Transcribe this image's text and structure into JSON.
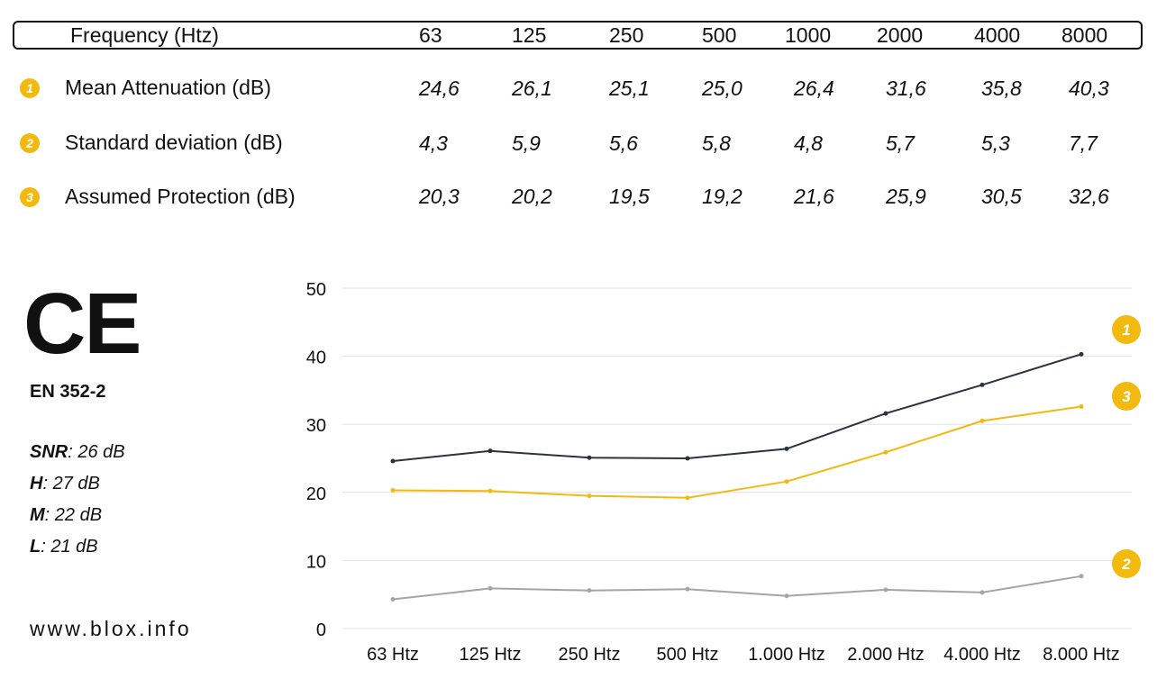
{
  "table": {
    "header": {
      "label": "Frequency (Htz)",
      "freqs": [
        "63",
        "125",
        "250",
        "500",
        "1000",
        "2000",
        "4000",
        "8000"
      ]
    },
    "rows": [
      {
        "badge": "1",
        "label": "Mean Attenuation (dB)",
        "values": [
          "24,6",
          "26,1",
          "25,1",
          "25,0",
          "26,4",
          "31,6",
          "35,8",
          "40,3"
        ]
      },
      {
        "badge": "2",
        "label": "Standard deviation (dB)",
        "values": [
          "4,3",
          "5,9",
          "5,6",
          "5,8",
          "4,8",
          "5,7",
          "5,3",
          "7,7"
        ]
      },
      {
        "badge": "3",
        "label": "Assumed Protection (dB)",
        "values": [
          "20,3",
          "20,2",
          "19,5",
          "19,2",
          "21,6",
          "25,9",
          "30,5",
          "32,6"
        ]
      }
    ]
  },
  "certification": {
    "mark": "CE",
    "standard": "EN 352-2",
    "specs": [
      {
        "key": "SNR",
        "value": ": 26 dB"
      },
      {
        "key": "H",
        "value": ": 27 dB"
      },
      {
        "key": "M",
        "value": ": 22 dB"
      },
      {
        "key": "L",
        "value": ": 21 dB"
      }
    ]
  },
  "website": "www.blox.info",
  "colors": {
    "badge": "#f2b90f",
    "series_1": "#2b3340",
    "series_2": "#a5a5a5",
    "series_3": "#f2b90f",
    "grid": "#e2e2e2"
  },
  "chart_data": {
    "type": "line",
    "categories": [
      "63 Htz",
      "125 Htz",
      "250 Htz",
      "500 Htz",
      "1.000 Htz",
      "2.000 Htz",
      "4.000 Htz",
      "8.000 Htz"
    ],
    "yticks": [
      "0",
      "10",
      "20",
      "30",
      "40",
      "50"
    ],
    "ylim": [
      0,
      50
    ],
    "grid": true,
    "series": [
      {
        "badge": "1",
        "values": [
          24.6,
          26.1,
          25.1,
          25.0,
          26.4,
          31.6,
          35.8,
          40.3
        ]
      },
      {
        "badge": "2",
        "values": [
          4.3,
          5.9,
          5.6,
          5.8,
          4.8,
          5.7,
          5.3,
          7.7
        ]
      },
      {
        "badge": "3",
        "values": [
          20.3,
          20.2,
          19.5,
          19.2,
          21.6,
          25.9,
          30.5,
          32.6
        ]
      }
    ]
  }
}
